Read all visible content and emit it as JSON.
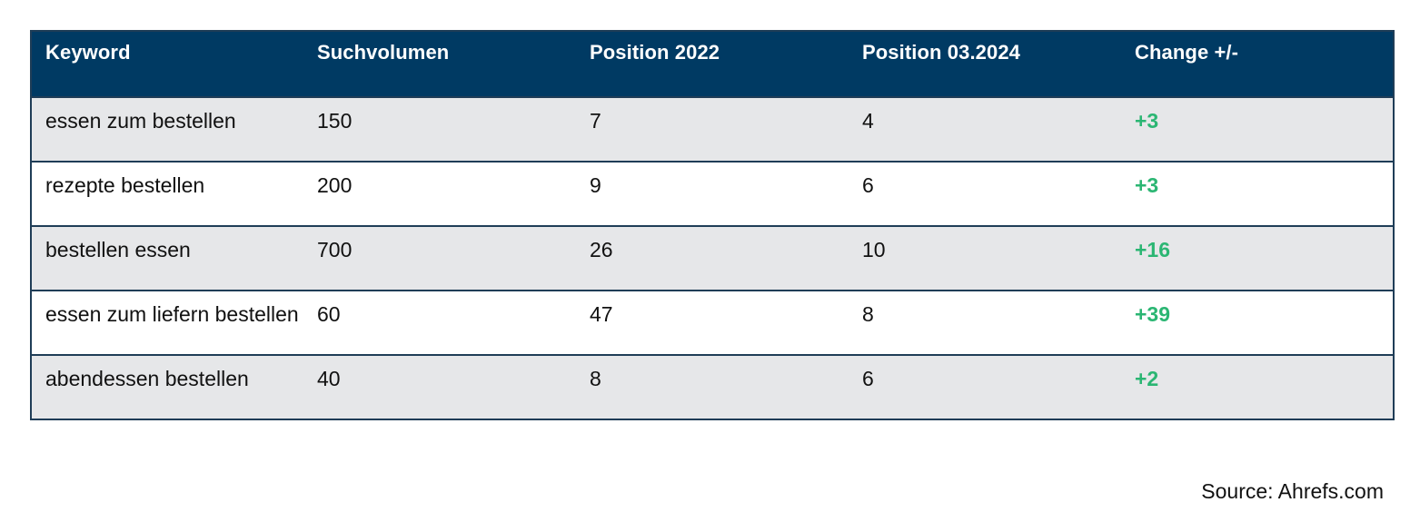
{
  "table": {
    "headers": [
      "Keyword",
      "Suchvolumen",
      "Position 2022",
      "Position 03.2024",
      "Change +/-"
    ],
    "rows": [
      {
        "keyword": "essen zum bestellen",
        "volume": "150",
        "pos2022": "7",
        "pos2024": "4",
        "change": "+3"
      },
      {
        "keyword": "rezepte bestellen",
        "volume": "200",
        "pos2022": "9",
        "pos2024": "6",
        "change": "+3"
      },
      {
        "keyword": "bestellen essen",
        "volume": "700",
        "pos2022": "26",
        "pos2024": "10",
        "change": "+16"
      },
      {
        "keyword": "essen zum liefern bestellen",
        "volume": "60",
        "pos2022": "47",
        "pos2024": "8",
        "change": "+39"
      },
      {
        "keyword": "abendessen bestellen",
        "volume": "40",
        "pos2022": "8",
        "pos2024": "6",
        "change": "+2"
      }
    ]
  },
  "source": "Source: Ahrefs.com",
  "colors": {
    "header_bg": "#003a63",
    "row_shade": "#e6e7e9",
    "change_positive": "#2bb673"
  }
}
